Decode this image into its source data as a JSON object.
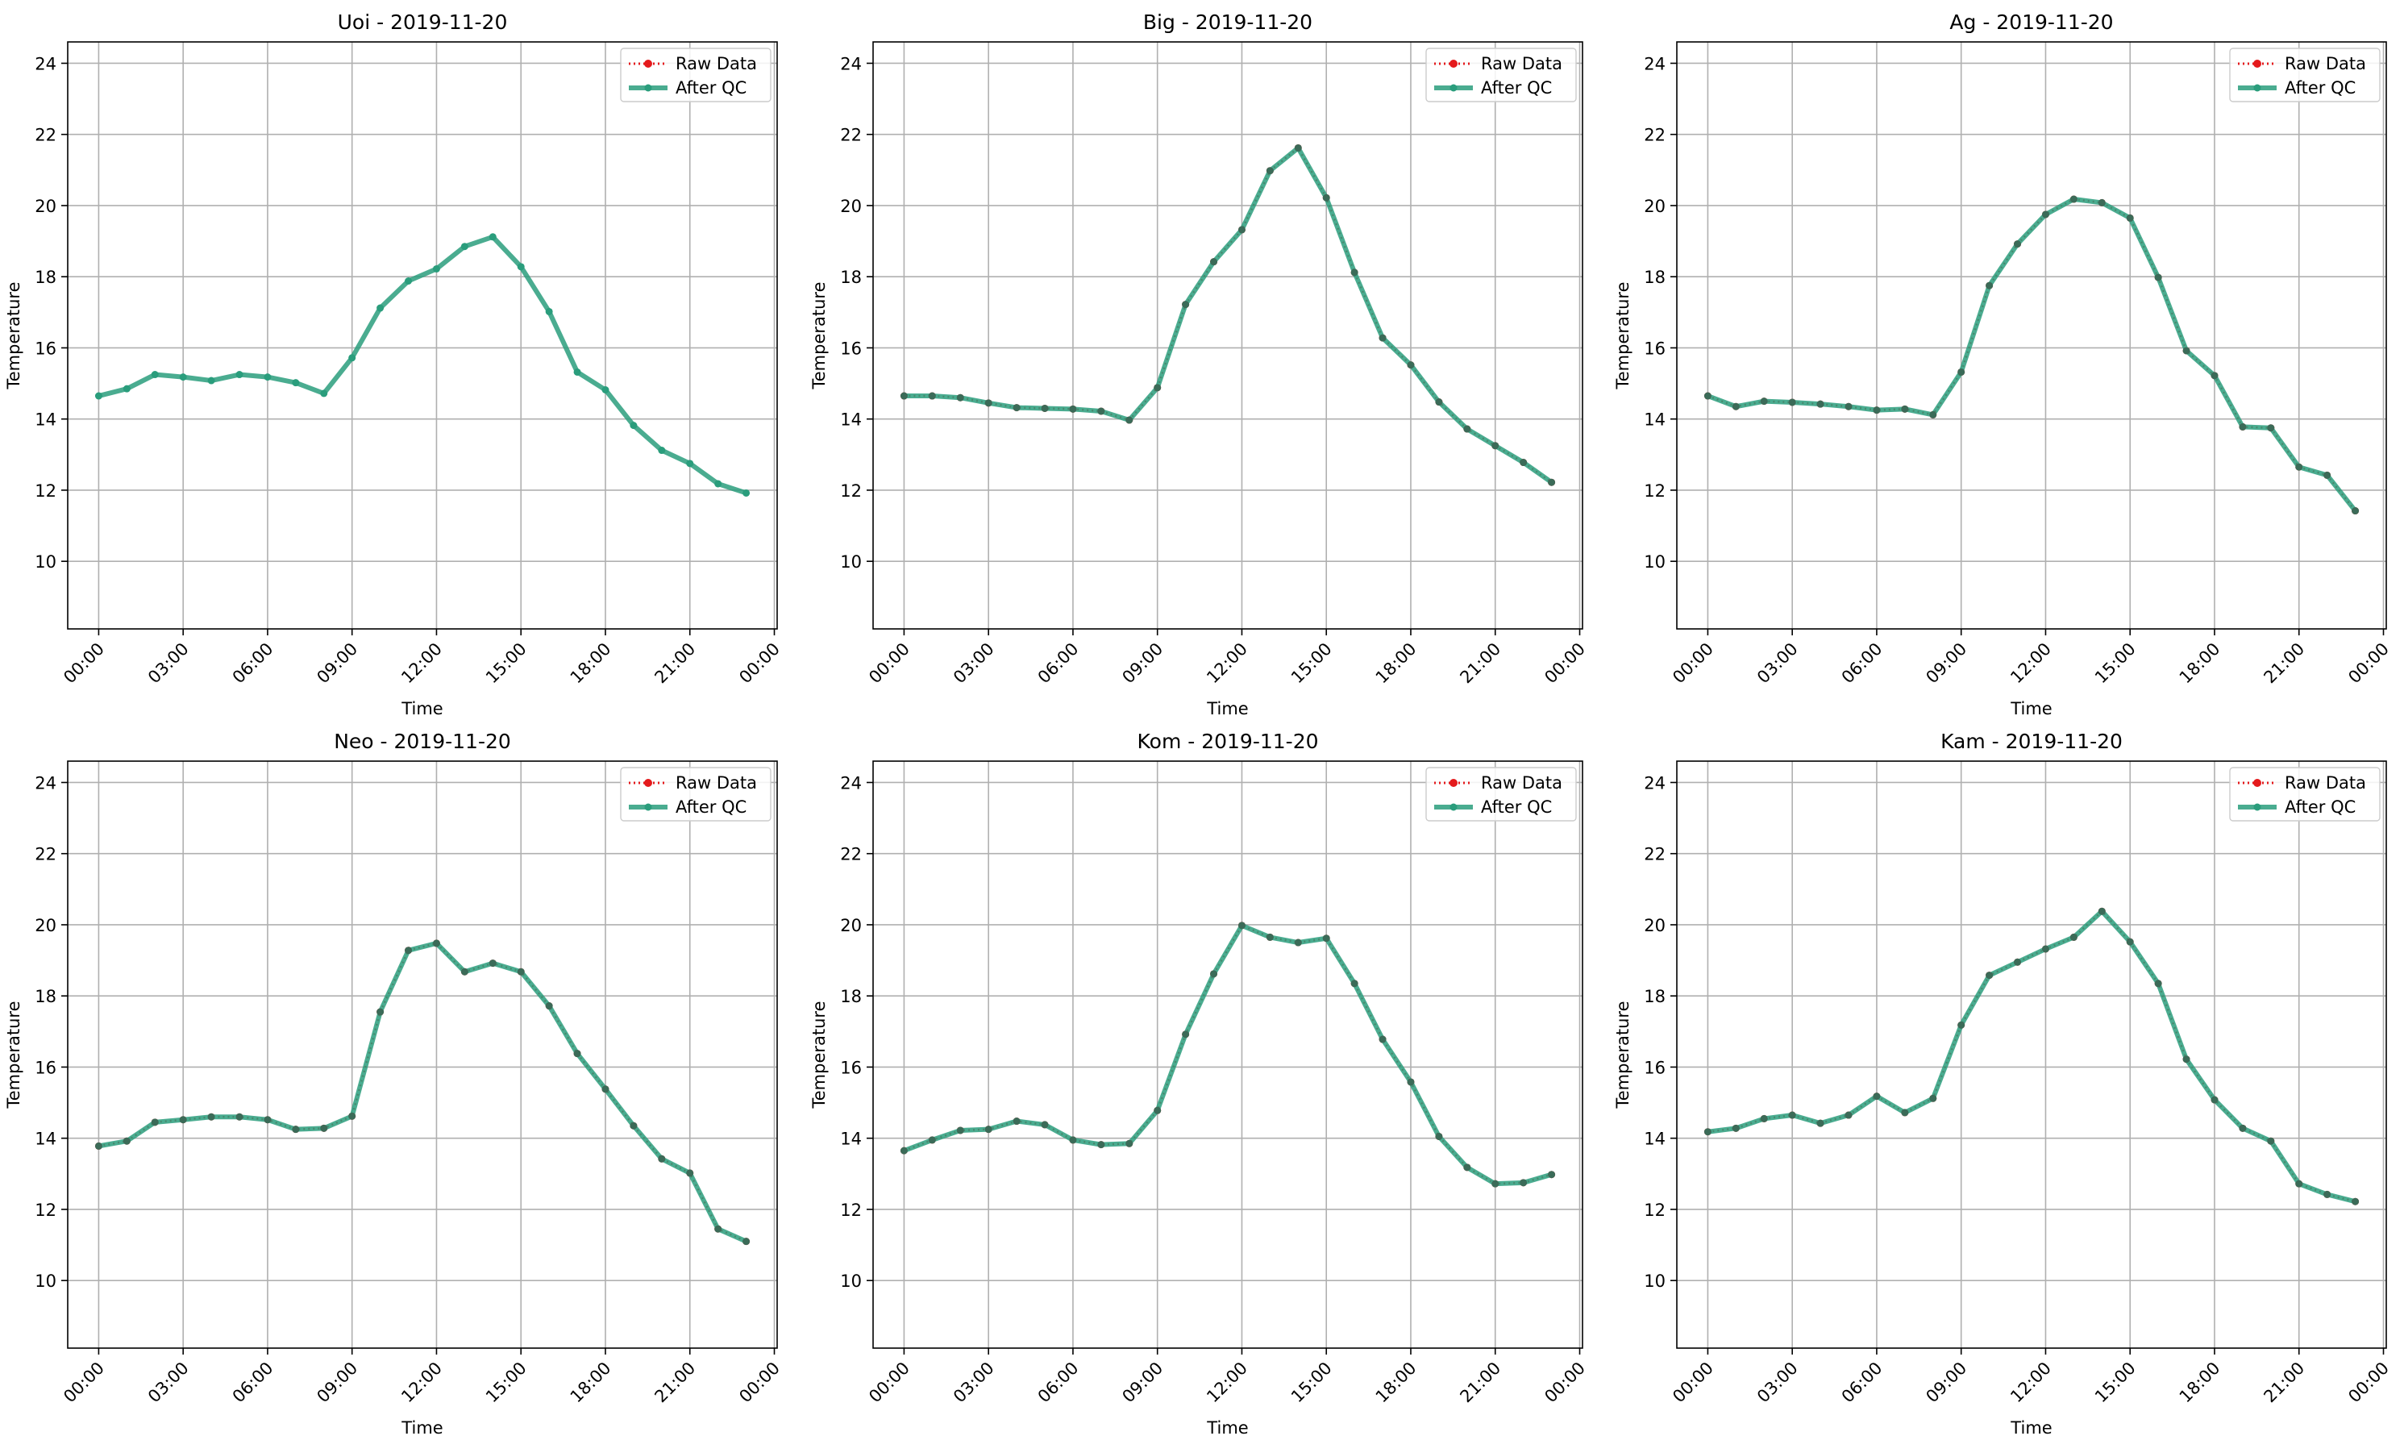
{
  "legend_labels": {
    "raw": "Raw Data",
    "qc": "After QC"
  },
  "colors": {
    "raw": "#e41a1c",
    "qc": "#2a9d7c",
    "grid": "#b0b0b0",
    "axis": "#000000"
  },
  "chart_data": [
    {
      "type": "line",
      "title": "Uoi - 2019-11-20",
      "xlabel": "Time",
      "ylabel": "Temperature",
      "xlim": [
        -1.1,
        24.1
      ],
      "ylim": [
        8.1,
        24.6
      ],
      "xticks": [
        0,
        3,
        6,
        9,
        12,
        15,
        18,
        21,
        24
      ],
      "xticklabels": [
        "00:00",
        "03:00",
        "06:00",
        "09:00",
        "12:00",
        "15:00",
        "18:00",
        "21:00",
        "00:00"
      ],
      "yticks": [
        10,
        12,
        14,
        16,
        18,
        20,
        22,
        24
      ],
      "legend_position": "top-right",
      "grid": true,
      "x": [
        0,
        1,
        2,
        3,
        4,
        5,
        6,
        7,
        8,
        9,
        10,
        11,
        12,
        13,
        14,
        15,
        16,
        17,
        18,
        19,
        20,
        21,
        22,
        23
      ],
      "series": [
        {
          "name": "Raw Data",
          "style": "dotted",
          "values": null
        },
        {
          "name": "After QC",
          "style": "solid",
          "values": [
            14.65,
            14.85,
            15.25,
            15.18,
            15.08,
            15.25,
            15.18,
            15.02,
            14.72,
            15.72,
            17.12,
            17.88,
            18.22,
            18.85,
            19.12,
            18.28,
            17.02,
            15.32,
            14.82,
            13.82,
            13.12,
            12.75,
            12.18,
            11.92
          ]
        }
      ]
    },
    {
      "type": "line",
      "title": "Big - 2019-11-20",
      "xlabel": "Time",
      "ylabel": "Temperature",
      "xlim": [
        -1.1,
        24.1
      ],
      "ylim": [
        8.1,
        24.6
      ],
      "xticks": [
        0,
        3,
        6,
        9,
        12,
        15,
        18,
        21,
        24
      ],
      "xticklabels": [
        "00:00",
        "03:00",
        "06:00",
        "09:00",
        "12:00",
        "15:00",
        "18:00",
        "21:00",
        "00:00"
      ],
      "yticks": [
        10,
        12,
        14,
        16,
        18,
        20,
        22,
        24
      ],
      "legend_position": "top-right",
      "grid": true,
      "x": [
        0,
        1,
        2,
        3,
        4,
        5,
        6,
        7,
        8,
        9,
        10,
        11,
        12,
        13,
        14,
        15,
        16,
        17,
        18,
        19,
        20,
        21,
        22,
        23
      ],
      "series": [
        {
          "name": "Raw Data",
          "style": "dotted",
          "values": [
            14.65,
            14.65,
            14.6,
            14.45,
            14.32,
            14.3,
            14.28,
            14.22,
            13.97,
            14.88,
            17.22,
            18.42,
            19.32,
            20.98,
            21.62,
            20.22,
            18.12,
            16.28,
            15.52,
            14.48,
            13.72,
            13.25,
            12.78,
            12.22
          ]
        },
        {
          "name": "After QC",
          "style": "solid",
          "values": [
            14.65,
            14.65,
            14.6,
            14.45,
            14.32,
            14.3,
            14.28,
            14.22,
            13.97,
            14.88,
            17.22,
            18.42,
            19.32,
            20.98,
            21.62,
            20.22,
            18.12,
            16.28,
            15.52,
            14.48,
            13.72,
            13.25,
            12.78,
            12.22
          ]
        }
      ]
    },
    {
      "type": "line",
      "title": "Ag - 2019-11-20",
      "xlabel": "Time",
      "ylabel": "Temperature",
      "xlim": [
        -1.1,
        24.1
      ],
      "ylim": [
        8.1,
        24.6
      ],
      "xticks": [
        0,
        3,
        6,
        9,
        12,
        15,
        18,
        21,
        24
      ],
      "xticklabels": [
        "00:00",
        "03:00",
        "06:00",
        "09:00",
        "12:00",
        "15:00",
        "18:00",
        "21:00",
        "00:00"
      ],
      "yticks": [
        10,
        12,
        14,
        16,
        18,
        20,
        22,
        24
      ],
      "legend_position": "top-right",
      "grid": true,
      "x": [
        0,
        1,
        2,
        3,
        4,
        5,
        6,
        7,
        8,
        9,
        10,
        11,
        12,
        13,
        14,
        15,
        16,
        17,
        18,
        19,
        20,
        21,
        22,
        23
      ],
      "series": [
        {
          "name": "Raw Data",
          "style": "dotted",
          "values": [
            14.65,
            14.35,
            14.5,
            14.47,
            14.42,
            14.35,
            14.25,
            14.28,
            14.12,
            15.32,
            17.75,
            18.92,
            19.75,
            20.18,
            20.08,
            19.65,
            17.98,
            15.92,
            15.22,
            13.78,
            13.75,
            12.65,
            12.42,
            11.42
          ]
        },
        {
          "name": "After QC",
          "style": "solid",
          "values": [
            14.65,
            14.35,
            14.5,
            14.47,
            14.42,
            14.35,
            14.25,
            14.28,
            14.12,
            15.32,
            17.75,
            18.92,
            19.75,
            20.18,
            20.08,
            19.65,
            17.98,
            15.92,
            15.22,
            13.78,
            13.75,
            12.65,
            12.42,
            11.42
          ]
        }
      ]
    },
    {
      "type": "line",
      "title": "Neo - 2019-11-20",
      "xlabel": "Time",
      "ylabel": "Temperature",
      "xlim": [
        -1.1,
        24.1
      ],
      "ylim": [
        8.1,
        24.6
      ],
      "xticks": [
        0,
        3,
        6,
        9,
        12,
        15,
        18,
        21,
        24
      ],
      "xticklabels": [
        "00:00",
        "03:00",
        "06:00",
        "09:00",
        "12:00",
        "15:00",
        "18:00",
        "21:00",
        "00:00"
      ],
      "yticks": [
        10,
        12,
        14,
        16,
        18,
        20,
        22,
        24
      ],
      "legend_position": "top-right",
      "grid": true,
      "x": [
        0,
        1,
        2,
        3,
        4,
        5,
        6,
        7,
        8,
        9,
        10,
        11,
        12,
        13,
        14,
        15,
        16,
        17,
        18,
        19,
        20,
        21,
        22,
        23
      ],
      "series": [
        {
          "name": "Raw Data",
          "style": "dotted",
          "values": [
            13.78,
            13.92,
            14.45,
            14.52,
            14.6,
            14.6,
            14.52,
            14.25,
            14.28,
            14.62,
            17.55,
            19.28,
            19.48,
            18.68,
            18.92,
            18.68,
            17.72,
            16.38,
            15.38,
            14.35,
            13.42,
            13.02,
            11.45,
            11.1
          ]
        },
        {
          "name": "After QC",
          "style": "solid",
          "values": [
            13.78,
            13.92,
            14.45,
            14.52,
            14.6,
            14.6,
            14.52,
            14.25,
            14.28,
            14.62,
            17.55,
            19.28,
            19.48,
            18.68,
            18.92,
            18.68,
            17.72,
            16.38,
            15.38,
            14.35,
            13.42,
            13.02,
            11.45,
            11.1
          ]
        }
      ]
    },
    {
      "type": "line",
      "title": "Kom - 2019-11-20",
      "xlabel": "Time",
      "ylabel": "Temperature",
      "xlim": [
        -1.1,
        24.1
      ],
      "ylim": [
        8.1,
        24.6
      ],
      "xticks": [
        0,
        3,
        6,
        9,
        12,
        15,
        18,
        21,
        24
      ],
      "xticklabels": [
        "00:00",
        "03:00",
        "06:00",
        "09:00",
        "12:00",
        "15:00",
        "18:00",
        "21:00",
        "00:00"
      ],
      "yticks": [
        10,
        12,
        14,
        16,
        18,
        20,
        22,
        24
      ],
      "legend_position": "top-right",
      "grid": true,
      "x": [
        0,
        1,
        2,
        3,
        4,
        5,
        6,
        7,
        8,
        9,
        10,
        11,
        12,
        13,
        14,
        15,
        16,
        17,
        18,
        19,
        20,
        21,
        22,
        23
      ],
      "series": [
        {
          "name": "Raw Data",
          "style": "dotted",
          "values": [
            13.65,
            13.95,
            14.22,
            14.25,
            14.48,
            14.38,
            13.95,
            13.82,
            13.85,
            14.78,
            16.92,
            18.62,
            19.98,
            19.65,
            19.5,
            19.62,
            18.35,
            16.78,
            15.58,
            14.05,
            13.18,
            12.72,
            12.75,
            12.98
          ]
        },
        {
          "name": "After QC",
          "style": "solid",
          "values": [
            13.65,
            13.95,
            14.22,
            14.25,
            14.48,
            14.38,
            13.95,
            13.82,
            13.85,
            14.78,
            16.92,
            18.62,
            19.98,
            19.65,
            19.5,
            19.62,
            18.35,
            16.78,
            15.58,
            14.05,
            13.18,
            12.72,
            12.75,
            12.98
          ]
        }
      ]
    },
    {
      "type": "line",
      "title": "Kam - 2019-11-20",
      "xlabel": "Time",
      "ylabel": "Temperature",
      "xlim": [
        -1.1,
        24.1
      ],
      "ylim": [
        8.1,
        24.6
      ],
      "xticks": [
        0,
        3,
        6,
        9,
        12,
        15,
        18,
        21,
        24
      ],
      "xticklabels": [
        "00:00",
        "03:00",
        "06:00",
        "09:00",
        "12:00",
        "15:00",
        "18:00",
        "21:00",
        "00:00"
      ],
      "yticks": [
        10,
        12,
        14,
        16,
        18,
        20,
        22,
        24
      ],
      "legend_position": "top-right",
      "grid": true,
      "x": [
        0,
        1,
        2,
        3,
        4,
        5,
        6,
        7,
        8,
        9,
        10,
        11,
        12,
        13,
        14,
        15,
        16,
        17,
        18,
        19,
        20,
        21,
        22,
        23
      ],
      "series": [
        {
          "name": "Raw Data",
          "style": "dotted",
          "values": [
            14.18,
            14.28,
            14.55,
            14.65,
            14.42,
            14.65,
            15.18,
            14.72,
            15.12,
            17.18,
            18.58,
            18.95,
            19.32,
            19.65,
            20.38,
            19.52,
            18.35,
            16.22,
            15.08,
            14.28,
            13.92,
            12.72,
            12.42,
            12.22
          ]
        },
        {
          "name": "After QC",
          "style": "solid",
          "values": [
            14.18,
            14.28,
            14.55,
            14.65,
            14.42,
            14.65,
            15.18,
            14.72,
            15.12,
            17.18,
            18.58,
            18.95,
            19.32,
            19.65,
            20.38,
            19.52,
            18.35,
            16.22,
            15.08,
            14.28,
            13.92,
            12.72,
            12.42,
            12.22
          ]
        }
      ]
    }
  ]
}
